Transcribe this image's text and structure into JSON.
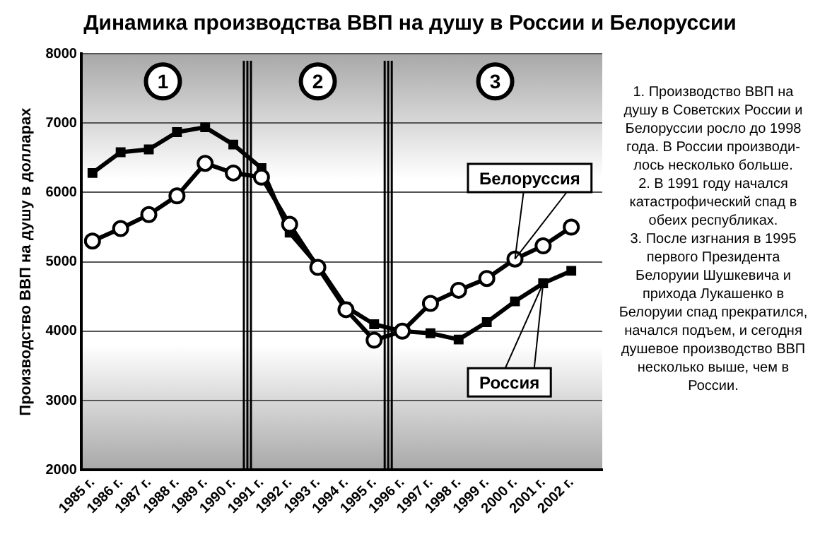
{
  "chart_data": {
    "type": "line",
    "title": "Динамика производства ВВП на душу в России и Белоруссии",
    "ylabel": "Производство ВВП на душу в долларах",
    "x": [
      1985,
      1986,
      1987,
      1988,
      1989,
      1990,
      1991,
      1992,
      1993,
      1994,
      1995,
      1996,
      1997,
      1998,
      1999,
      2000,
      2001,
      2002
    ],
    "xlim": [
      1984.6,
      2003.1
    ],
    "xticks": [
      {
        "value": 1985,
        "label": "1985 г."
      },
      {
        "value": 1986,
        "label": "1986 г."
      },
      {
        "value": 1987,
        "label": "1987 г."
      },
      {
        "value": 1988,
        "label": "1988 г."
      },
      {
        "value": 1989,
        "label": "1989 г."
      },
      {
        "value": 1990,
        "label": "1990 г."
      },
      {
        "value": 1991,
        "label": "1991 г."
      },
      {
        "value": 1992,
        "label": "1992 г."
      },
      {
        "value": 1993,
        "label": "1993 г."
      },
      {
        "value": 1994,
        "label": "1994 г."
      },
      {
        "value": 1995,
        "label": "1995 г."
      },
      {
        "value": 1996,
        "label": "1996 г."
      },
      {
        "value": 1997,
        "label": "1997 г."
      },
      {
        "value": 1998,
        "label": "1998 г."
      },
      {
        "value": 1999,
        "label": "1999 г."
      },
      {
        "value": 2000,
        "label": "2000 г."
      },
      {
        "value": 2001,
        "label": "2001 г."
      },
      {
        "value": 2002,
        "label": "2002 г."
      }
    ],
    "ylim": [
      2000,
      8000
    ],
    "yticks": [
      2000,
      3000,
      4000,
      5000,
      6000,
      7000,
      8000
    ],
    "grid": "y",
    "legend": false,
    "series": [
      {
        "name": "Белоруссия",
        "color": "#000000",
        "marker": "circle",
        "values": [
          5300,
          5480,
          5680,
          5950,
          6420,
          6280,
          6220,
          5540,
          4920,
          4310,
          3870,
          4000,
          4400,
          4590,
          4760,
          5040,
          5230,
          5500
        ]
      },
      {
        "name": "Россия",
        "color": "#000000",
        "marker": "square",
        "values": [
          6280,
          6580,
          6620,
          6870,
          6940,
          6690,
          6350,
          5420,
          4950,
          4350,
          4100,
          4000,
          3970,
          3880,
          4130,
          4430,
          4690,
          4870
        ]
      }
    ],
    "ref_lines": [
      {
        "axis": "x",
        "value": 1990.5
      },
      {
        "axis": "x",
        "value": 1995.5
      }
    ],
    "annotations": [
      {
        "text": "1",
        "x": 1987.5,
        "y": 7600
      },
      {
        "text": "2",
        "x": 1993,
        "y": 7600
      },
      {
        "text": "3",
        "x": 1999.3,
        "y": 7600
      },
      "1. Производство ВВП на душу в Советских России и Белоруссии росло до 1998 года. В России производи-лось несколько больше.",
      "2. В 1991 году начался катастрофический спад в обеих республиках.",
      "3. После изгнания в 1995 первого Президента Белоруии Шушкевича и прихода Лукашенко в Белоруии спад прекратился, начался подъем, и сегодня душевое производство ВВП несколько выше, чем в России."
    ]
  }
}
